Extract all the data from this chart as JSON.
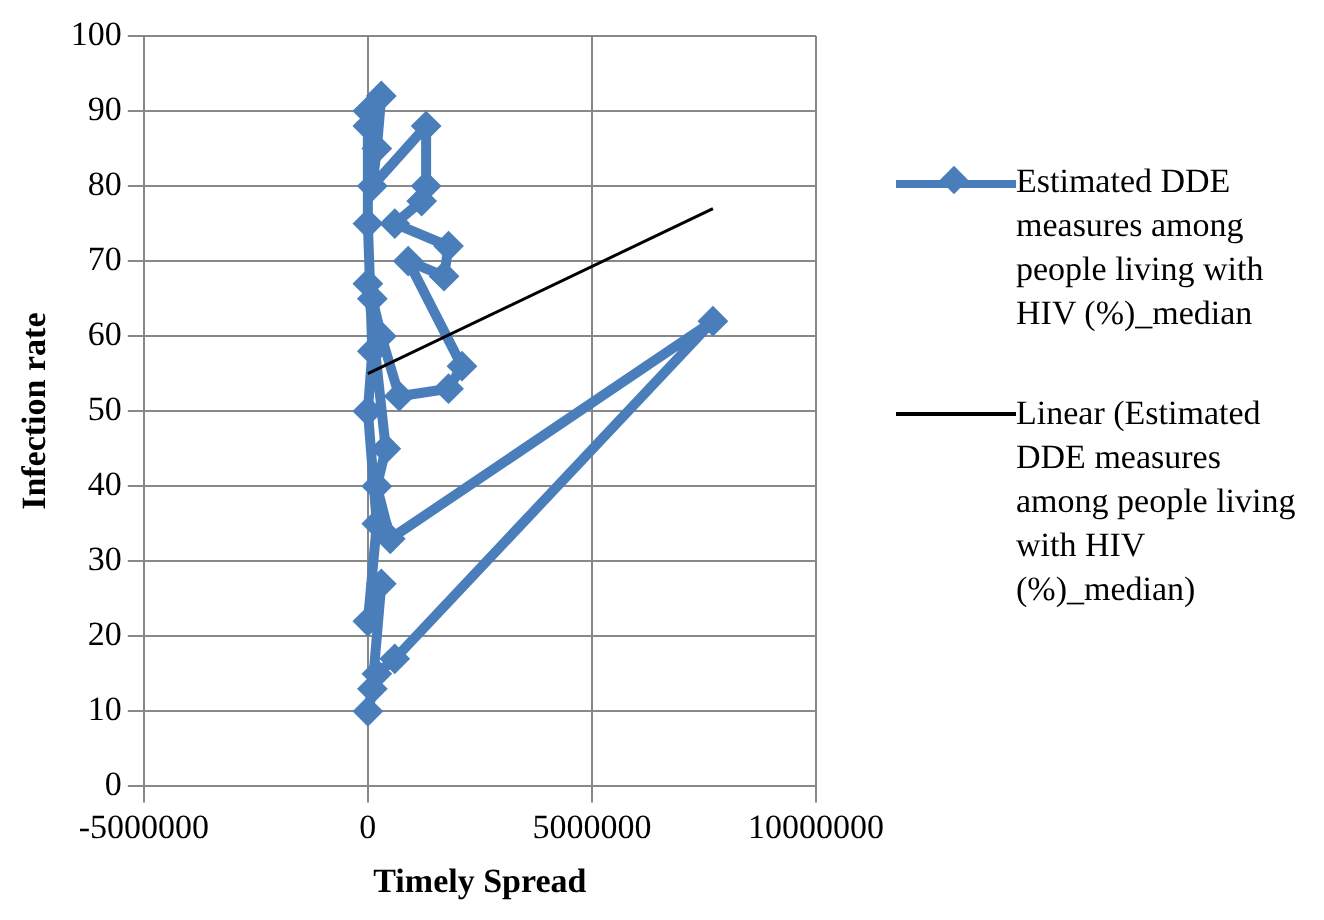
{
  "chart_data": {
    "type": "line",
    "xlabel": "Timely Spread",
    "ylabel": "Infection rate",
    "xlim": [
      -5000000,
      10000000
    ],
    "xticks": [
      -5000000,
      0,
      5000000,
      10000000
    ],
    "ylim": [
      0,
      100
    ],
    "yticks": [
      0,
      10,
      20,
      30,
      40,
      50,
      60,
      70,
      80,
      90,
      100
    ],
    "grid": true,
    "legend": "right",
    "series": [
      {
        "name": "Estimated DDE measures among people living with HIV (%)_median",
        "color": "#4a7ebb",
        "marker": "diamond",
        "x": [
          0,
          300000,
          200000,
          100000,
          1300000,
          1300000,
          1200000,
          600000,
          1800000,
          1700000,
          900000,
          2100000,
          1800000,
          700000,
          300000,
          100000,
          0,
          400000,
          200000,
          500000,
          7700000,
          600000,
          200000,
          0,
          100000,
          300000,
          0,
          200000,
          0,
          100000,
          0,
          0
        ],
        "values": [
          90,
          92,
          85,
          80,
          88,
          80,
          78,
          75,
          72,
          68,
          70,
          56,
          53,
          52,
          60,
          65,
          67,
          45,
          40,
          33,
          62,
          17,
          15,
          10,
          13,
          27,
          22,
          35,
          50,
          58,
          75,
          88
        ]
      },
      {
        "name": "Linear (Estimated DDE measures among people living with HIV (%)_median)",
        "color": "#000000",
        "marker": "none",
        "x": [
          0,
          7700000
        ],
        "values": [
          55,
          77
        ]
      }
    ]
  }
}
